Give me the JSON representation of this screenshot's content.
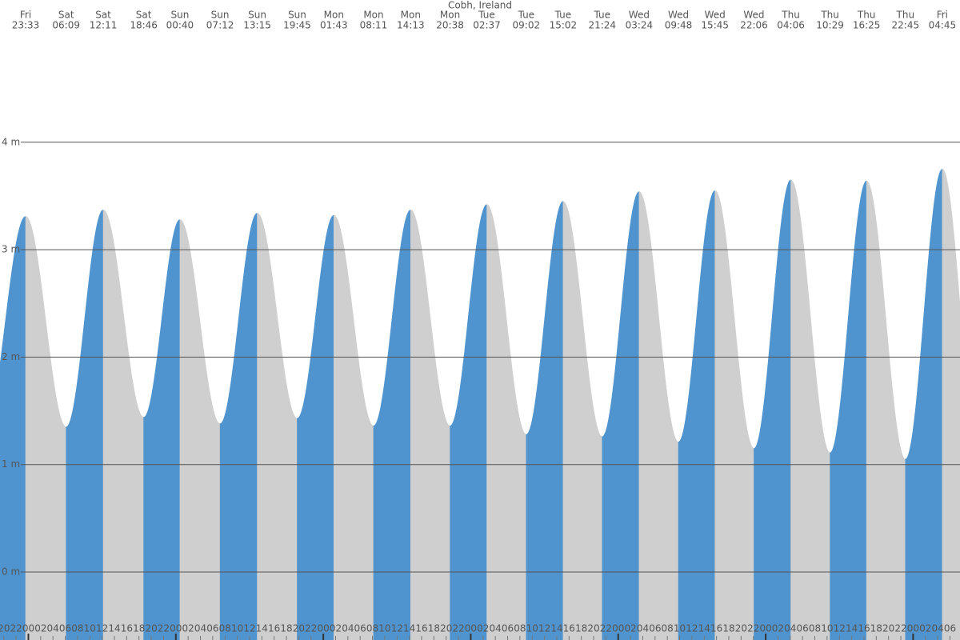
{
  "chart_data": {
    "type": "tide",
    "title": "Cobh, Ireland",
    "rising_color": "#4f94cf",
    "falling_color": "#cfcfcf",
    "grid": true,
    "extremes": [
      {
        "day": "Fri",
        "time": "23:33",
        "height": 3.31
      },
      {
        "day": "Sat",
        "time": "06:09",
        "height": 1.35
      },
      {
        "day": "Sat",
        "time": "12:11",
        "height": 3.37
      },
      {
        "day": "Sat",
        "time": "18:46",
        "height": 1.44
      },
      {
        "day": "Sun",
        "time": "00:40",
        "height": 3.28
      },
      {
        "day": "Sun",
        "time": "07:12",
        "height": 1.38
      },
      {
        "day": "Sun",
        "time": "13:15",
        "height": 3.34
      },
      {
        "day": "Sun",
        "time": "19:45",
        "height": 1.43
      },
      {
        "day": "Mon",
        "time": "01:43",
        "height": 3.32
      },
      {
        "day": "Mon",
        "time": "08:11",
        "height": 1.36
      },
      {
        "day": "Mon",
        "time": "14:13",
        "height": 3.37
      },
      {
        "day": "Mon",
        "time": "20:38",
        "height": 1.36
      },
      {
        "day": "Tue",
        "time": "02:37",
        "height": 3.42
      },
      {
        "day": "Tue",
        "time": "09:02",
        "height": 1.28
      },
      {
        "day": "Tue",
        "time": "15:02",
        "height": 3.45
      },
      {
        "day": "Tue",
        "time": "21:24",
        "height": 1.26
      },
      {
        "day": "Wed",
        "time": "03:24",
        "height": 3.54
      },
      {
        "day": "Wed",
        "time": "09:48",
        "height": 1.21
      },
      {
        "day": "Wed",
        "time": "15:45",
        "height": 3.55
      },
      {
        "day": "Wed",
        "time": "22:06",
        "height": 1.15
      },
      {
        "day": "Thu",
        "time": "04:06",
        "height": 3.65
      },
      {
        "day": "Thu",
        "time": "10:29",
        "height": 1.11
      },
      {
        "day": "Thu",
        "time": "16:25",
        "height": 3.64
      },
      {
        "day": "Thu",
        "time": "22:45",
        "height": 1.05
      },
      {
        "day": "Fri",
        "time": "04:45",
        "height": 3.75
      }
    ],
    "ylim": [
      -0.633,
      5.324
    ],
    "yticks": [
      {
        "value": 0,
        "label": "0 m"
      },
      {
        "value": 1,
        "label": "1 m"
      },
      {
        "value": 2,
        "label": "2 m"
      },
      {
        "value": 3,
        "label": "3 m"
      },
      {
        "value": 4,
        "label": "4 m"
      }
    ],
    "xlim": [
      19.38,
      175.63
    ],
    "xticks": [
      {
        "value": 20,
        "label": "20"
      },
      {
        "value": 22,
        "label": "22"
      },
      {
        "value": 24,
        "label": "00"
      },
      {
        "value": 26,
        "label": "02"
      },
      {
        "value": 28,
        "label": "04"
      },
      {
        "value": 30,
        "label": "06"
      },
      {
        "value": 32,
        "label": "08"
      },
      {
        "value": 34,
        "label": "10"
      },
      {
        "value": 36,
        "label": "12"
      },
      {
        "value": 38,
        "label": "14"
      },
      {
        "value": 40,
        "label": "16"
      },
      {
        "value": 42,
        "label": "18"
      },
      {
        "value": 44,
        "label": "20"
      },
      {
        "value": 46,
        "label": "22"
      },
      {
        "value": 48,
        "label": "00"
      },
      {
        "value": 50,
        "label": "02"
      },
      {
        "value": 52,
        "label": "04"
      },
      {
        "value": 54,
        "label": "06"
      },
      {
        "value": 56,
        "label": "08"
      },
      {
        "value": 58,
        "label": "10"
      },
      {
        "value": 60,
        "label": "12"
      },
      {
        "value": 62,
        "label": "14"
      },
      {
        "value": 64,
        "label": "16"
      },
      {
        "value": 66,
        "label": "18"
      },
      {
        "value": 68,
        "label": "20"
      },
      {
        "value": 70,
        "label": "22"
      },
      {
        "value": 72,
        "label": "00"
      },
      {
        "value": 74,
        "label": "02"
      },
      {
        "value": 76,
        "label": "04"
      },
      {
        "value": 78,
        "label": "06"
      },
      {
        "value": 80,
        "label": "08"
      },
      {
        "value": 82,
        "label": "10"
      },
      {
        "value": 84,
        "label": "12"
      },
      {
        "value": 86,
        "label": "14"
      },
      {
        "value": 88,
        "label": "16"
      },
      {
        "value": 90,
        "label": "18"
      },
      {
        "value": 92,
        "label": "20"
      },
      {
        "value": 94,
        "label": "22"
      },
      {
        "value": 96,
        "label": "00"
      },
      {
        "value": 98,
        "label": "02"
      },
      {
        "value": 100,
        "label": "04"
      },
      {
        "value": 102,
        "label": "06"
      },
      {
        "value": 104,
        "label": "08"
      },
      {
        "value": 106,
        "label": "10"
      },
      {
        "value": 108,
        "label": "12"
      },
      {
        "value": 110,
        "label": "14"
      },
      {
        "value": 112,
        "label": "16"
      },
      {
        "value": 114,
        "label": "18"
      },
      {
        "value": 116,
        "label": "20"
      },
      {
        "value": 118,
        "label": "22"
      },
      {
        "value": 120,
        "label": "00"
      },
      {
        "value": 122,
        "label": "02"
      },
      {
        "value": 124,
        "label": "04"
      },
      {
        "value": 126,
        "label": "06"
      },
      {
        "value": 128,
        "label": "08"
      },
      {
        "value": 130,
        "label": "10"
      },
      {
        "value": 132,
        "label": "12"
      },
      {
        "value": 134,
        "label": "14"
      },
      {
        "value": 136,
        "label": "16"
      },
      {
        "value": 138,
        "label": "18"
      },
      {
        "value": 140,
        "label": "20"
      },
      {
        "value": 142,
        "label": "22"
      },
      {
        "value": 144,
        "label": "00"
      },
      {
        "value": 146,
        "label": "02"
      },
      {
        "value": 148,
        "label": "04"
      },
      {
        "value": 150,
        "label": "06"
      },
      {
        "value": 152,
        "label": "08"
      },
      {
        "value": 154,
        "label": "10"
      },
      {
        "value": 156,
        "label": "12"
      },
      {
        "value": 158,
        "label": "14"
      },
      {
        "value": 160,
        "label": "16"
      },
      {
        "value": 162,
        "label": "18"
      },
      {
        "value": 164,
        "label": "20"
      },
      {
        "value": 166,
        "label": "22"
      },
      {
        "value": 168,
        "label": "00"
      },
      {
        "value": 170,
        "label": "02"
      },
      {
        "value": 172,
        "label": "04"
      },
      {
        "value": 174,
        "label": "06"
      }
    ]
  }
}
